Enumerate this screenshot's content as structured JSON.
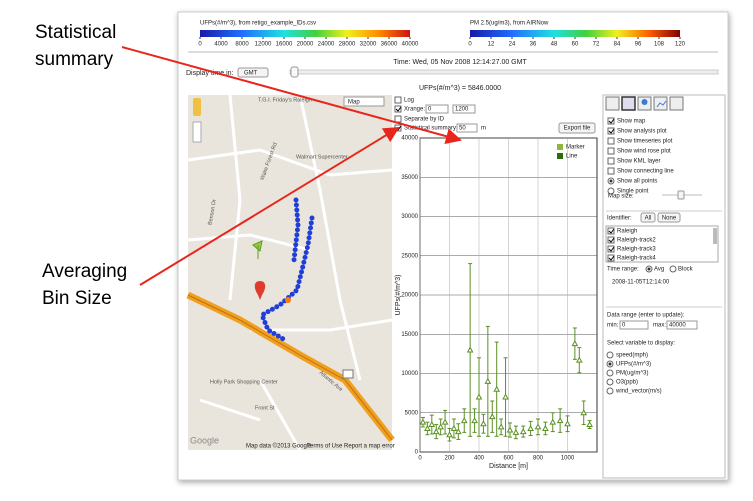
{
  "annotations": [
    {
      "lines": [
        "Statistical",
        "summary"
      ]
    },
    {
      "lines": [
        "Averaging",
        "Bin Size"
      ]
    }
  ],
  "ufp_scale": {
    "title": "UFPs(#/m^3), from retigo_example_IDs.csv",
    "lim": [
      0,
      40000
    ],
    "ticks": [
      0,
      4000,
      8000,
      12000,
      16000,
      20000,
      24000,
      28000,
      32000,
      36000,
      40000
    ]
  },
  "pm_scale": {
    "title": "PM 2.5(ug/m3), from AIRNow",
    "lim": [
      0,
      120
    ],
    "ticks": [
      0,
      12,
      24,
      36,
      48,
      60,
      72,
      84,
      96,
      108,
      120
    ]
  },
  "time": "Time: Wed, 05 Nov 2008 12:14:27.00 GMT",
  "display_time": {
    "label": "Display time in:",
    "value": "GMT"
  },
  "current_value": "UFPs(#/m^3) = 5846.0000",
  "map": {
    "type_select": "Map",
    "labels": [
      "T.G.I. Friday's Raleigh",
      "Walmart Supercenter",
      "Holly Park Shopping Center",
      "Front St",
      "Wake Forest Rd",
      "Benson Dr",
      "Atlantic Ave"
    ],
    "logo": "Google",
    "footer": [
      "Map data ©2013 Google",
      "Terms of Use",
      "Report a map error"
    ]
  },
  "plot_controls": {
    "log": "Log",
    "xrange_label": "Xrange:",
    "xrange": [
      "0",
      "1200"
    ],
    "separate": "Separate by ID",
    "stat_summary": "Statistical summary",
    "bin_size": "50",
    "bin_unit": "m",
    "export": "Export file"
  },
  "plot": {
    "type": "errorbar",
    "x": [
      20,
      50,
      80,
      110,
      140,
      170,
      200,
      230,
      260,
      300,
      340,
      370,
      400,
      430,
      460,
      490,
      520,
      550,
      580,
      610,
      650,
      700,
      750,
      800,
      850,
      900,
      950,
      1000,
      1050,
      1080,
      1110,
      1150
    ],
    "values": [
      3800,
      3000,
      3500,
      2600,
      3200,
      3800,
      2200,
      3000,
      2600,
      4000,
      13000,
      4000,
      7000,
      3600,
      9000,
      4500,
      8000,
      3200,
      7000,
      2800,
      2500,
      2600,
      3000,
      3200,
      3000,
      3800,
      4000,
      3600,
      13800,
      11700,
      5000,
      3500
    ],
    "errors": [
      600,
      800,
      1200,
      900,
      1000,
      1500,
      800,
      1200,
      1000,
      1500,
      11000,
      1500,
      5000,
      1200,
      7000,
      2000,
      6000,
      1000,
      5000,
      900,
      800,
      700,
      900,
      1000,
      800,
      1200,
      1500,
      1000,
      2000,
      1600,
      1500,
      500
    ],
    "color": "#5a8f22",
    "xlim": [
      0,
      1200
    ],
    "ylim": [
      0,
      40000
    ],
    "xticks": [
      0,
      200,
      400,
      600,
      800,
      1000
    ],
    "yticks": [
      0,
      5000,
      10000,
      15000,
      20000,
      25000,
      30000,
      35000,
      40000
    ],
    "grid": true,
    "xlabel": "Distance [m]",
    "ylabel": "UFPs(#/m^3)",
    "legend": [
      {
        "name": "Marker",
        "color": "#8fb83a"
      },
      {
        "name": "Line",
        "color": "#2e6b10"
      }
    ]
  },
  "side_panel": {
    "options": [
      {
        "label": "Show map",
        "kind": "check",
        "on": true
      },
      {
        "label": "Show analysis plot",
        "kind": "check",
        "on": true
      },
      {
        "label": "Show timeseries plot",
        "kind": "check",
        "on": false
      },
      {
        "label": "Show wind rose plot",
        "kind": "check",
        "on": false
      },
      {
        "label": "Show KML layer",
        "kind": "check",
        "on": false
      },
      {
        "label": "Show connecting line",
        "kind": "check",
        "on": false
      },
      {
        "label": "Show all points",
        "kind": "radio",
        "on": true
      },
      {
        "label": "Single point",
        "kind": "radio",
        "on": false
      }
    ],
    "map_size": "Map size:",
    "identifier": "Identifier:",
    "all": "All",
    "none": "None",
    "ids": [
      "Raleigh",
      "Raleigh-track2",
      "Raleigh-track3",
      "Raleigh-track4"
    ],
    "time_range": "Time range:",
    "avg": "Avg",
    "block": "Block",
    "time_value": "2008-11-05T12:14:00",
    "data_range": "Data range (enter to update):",
    "min_label": "min:",
    "min": "0",
    "max_label": "max:",
    "max": "40000",
    "select_var": "Select variable to display:",
    "variables": [
      {
        "label": "speed(mph)",
        "on": false
      },
      {
        "label": "UFPs(#/m^3)",
        "on": true
      },
      {
        "label": "PM(ug/m^3)",
        "on": false
      },
      {
        "label": "O3(ppb)",
        "on": false
      },
      {
        "label": "wind_vector(m/s)",
        "on": false
      }
    ]
  }
}
